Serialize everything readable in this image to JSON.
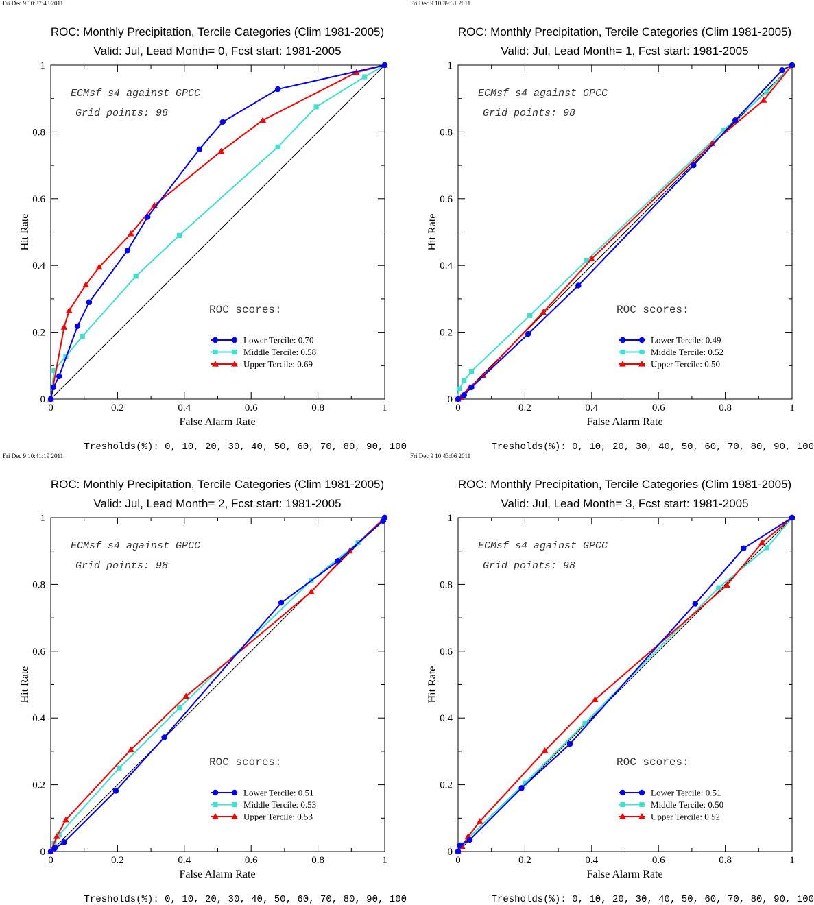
{
  "colors": {
    "lower": "#0000ff",
    "middle": "#40e0d0",
    "upper": "#ff0000",
    "diagonal": "#000000"
  },
  "chart_data": [
    {
      "type": "line",
      "timestamp": "Fri Dec  9 10:37:43 2011",
      "title": "ROC: Monthly Precipitation, Tercile Categories (Clim 1981-2005)",
      "subtitle": "Valid: Jul, Lead Month= 0, Fcst start: 1981-2005",
      "xlabel": "False Alarm Rate",
      "ylabel": "Hit Rate",
      "xlim": [
        0,
        1
      ],
      "ylim": [
        0,
        1
      ],
      "x_ticks": [
        "0",
        "0.2",
        "0.4",
        "0.6",
        "0.8",
        "1"
      ],
      "y_ticks": [
        "0",
        "0.2",
        "0.4",
        "0.6",
        "0.8",
        "1"
      ],
      "annotation_1": "ECMsf s4 against GPCC",
      "annotation_2": "Grid points:   98",
      "legend_title": "ROC scores:",
      "thresholds": "Tresholds(%): 0, 10, 20, 30, 40, 50, 60, 70, 80, 90, 100",
      "series": [
        {
          "name": "Lower Tercile: 0.70",
          "color_key": "lower",
          "marker": "circle",
          "x": [
            0,
            0.008,
            0.025,
            0.08,
            0.115,
            0.23,
            0.29,
            0.445,
            0.515,
            0.68,
            1
          ],
          "y": [
            0,
            0.035,
            0.068,
            0.218,
            0.29,
            0.445,
            0.545,
            0.748,
            0.83,
            0.928,
            1
          ]
        },
        {
          "name": "Middle Tercile: 0.58",
          "color_key": "middle",
          "marker": "square",
          "x": [
            0,
            0.01,
            0.045,
            0.095,
            0.255,
            0.385,
            0.68,
            0.795,
            0.94,
            1
          ],
          "y": [
            0,
            0.085,
            0.128,
            0.188,
            0.368,
            0.49,
            0.755,
            0.875,
            0.965,
            1
          ]
        },
        {
          "name": "Upper Tercile: 0.69",
          "color_key": "upper",
          "marker": "triangle",
          "x": [
            0,
            0.04,
            0.055,
            0.105,
            0.145,
            0.24,
            0.31,
            0.51,
            0.635,
            0.915,
            1
          ],
          "y": [
            0,
            0.215,
            0.265,
            0.342,
            0.395,
            0.495,
            0.58,
            0.742,
            0.835,
            0.978,
            1
          ]
        }
      ]
    },
    {
      "type": "line",
      "timestamp": "Fri Dec  9 10:39:31 2011",
      "title": "ROC: Monthly Precipitation, Tercile Categories (Clim 1981-2005)",
      "subtitle": "Valid: Jul, Lead Month= 1, Fcst start: 1981-2005",
      "xlabel": "False Alarm Rate",
      "ylabel": "Hit Rate",
      "xlim": [
        0,
        1
      ],
      "ylim": [
        0,
        1
      ],
      "x_ticks": [
        "0",
        "0.2",
        "0.4",
        "0.6",
        "0.8",
        "1"
      ],
      "y_ticks": [
        "0",
        "0.2",
        "0.4",
        "0.6",
        "0.8",
        "1"
      ],
      "annotation_1": "ECMsf s4 against GPCC",
      "annotation_2": "Grid points:   98",
      "legend_title": "ROC scores:",
      "thresholds": "Tresholds(%): 0, 10, 20, 30, 40, 50, 60, 70, 80, 90, 100",
      "series": [
        {
          "name": "Lower Tercile: 0.49",
          "color_key": "lower",
          "marker": "circle",
          "x": [
            0,
            0.018,
            0.04,
            0.21,
            0.36,
            0.705,
            0.83,
            0.97,
            1
          ],
          "y": [
            0,
            0.012,
            0.035,
            0.195,
            0.34,
            0.7,
            0.835,
            0.985,
            1
          ]
        },
        {
          "name": "Middle Tercile: 0.52",
          "color_key": "middle",
          "marker": "square",
          "x": [
            0,
            0.003,
            0.018,
            0.04,
            0.215,
            0.385,
            0.795,
            0.925,
            1
          ],
          "y": [
            0,
            0.03,
            0.055,
            0.083,
            0.25,
            0.415,
            0.805,
            0.92,
            1
          ]
        },
        {
          "name": "Upper Tercile: 0.50",
          "color_key": "upper",
          "marker": "triangle",
          "x": [
            0,
            0.008,
            0.035,
            0.075,
            0.255,
            0.4,
            0.76,
            0.915,
            1
          ],
          "y": [
            0,
            0.005,
            0.035,
            0.07,
            0.26,
            0.42,
            0.765,
            0.895,
            1
          ]
        }
      ]
    },
    {
      "type": "line",
      "timestamp": "Fri Dec  9 10:41:19 2011",
      "title": "ROC: Monthly Precipitation, Tercile Categories (Clim 1981-2005)",
      "subtitle": "Valid: Jul, Lead Month= 2, Fcst start: 1981-2005",
      "xlabel": "False Alarm Rate",
      "ylabel": "Hit Rate",
      "xlim": [
        0,
        1
      ],
      "ylim": [
        0,
        1
      ],
      "x_ticks": [
        "0",
        "0.2",
        "0.4",
        "0.6",
        "0.8",
        "1"
      ],
      "y_ticks": [
        "0",
        "0.2",
        "0.4",
        "0.6",
        "0.8",
        "1"
      ],
      "annotation_1": "ECMsf s4 against GPCC",
      "annotation_2": "Grid points:   98",
      "legend_title": "ROC scores:",
      "thresholds": "Tresholds(%): 0, 10, 20, 30, 40, 50, 60, 70, 80, 90, 100",
      "series": [
        {
          "name": "Lower Tercile: 0.51",
          "color_key": "lower",
          "marker": "circle",
          "x": [
            0,
            0.012,
            0.04,
            0.195,
            0.34,
            0.69,
            0.86,
            0.995,
            1
          ],
          "y": [
            0,
            0.01,
            0.028,
            0.182,
            0.342,
            0.745,
            0.87,
            0.99,
            1
          ]
        },
        {
          "name": "Middle Tercile: 0.53",
          "color_key": "middle",
          "marker": "square",
          "x": [
            0,
            0.01,
            0.025,
            0.205,
            0.385,
            0.78,
            0.92,
            1
          ],
          "y": [
            0,
            0.025,
            0.05,
            0.25,
            0.43,
            0.812,
            0.925,
            1
          ]
        },
        {
          "name": "Upper Tercile: 0.53",
          "color_key": "upper",
          "marker": "triangle",
          "x": [
            0,
            0.018,
            0.045,
            0.24,
            0.405,
            0.78,
            0.895,
            0.995,
            1
          ],
          "y": [
            0,
            0.045,
            0.095,
            0.305,
            0.465,
            0.778,
            0.9,
            0.995,
            1
          ]
        }
      ]
    },
    {
      "type": "line",
      "timestamp": "Fri Dec  9 10:43:06 2011",
      "title": "ROC: Monthly Precipitation, Tercile Categories (Clim 1981-2005)",
      "subtitle": "Valid: Jul, Lead Month= 3, Fcst start: 1981-2005",
      "xlabel": "False Alarm Rate",
      "ylabel": "Hit Rate",
      "xlim": [
        0,
        1
      ],
      "ylim": [
        0,
        1
      ],
      "x_ticks": [
        "0",
        "0.2",
        "0.4",
        "0.6",
        "0.8",
        "1"
      ],
      "y_ticks": [
        "0",
        "0.2",
        "0.4",
        "0.6",
        "0.8",
        "1"
      ],
      "annotation_1": "ECMsf s4 against GPCC",
      "annotation_2": "Grid points:   98",
      "legend_title": "ROC scores:",
      "thresholds": "Tresholds(%): 0, 10, 20, 30, 40, 50, 60, 70, 80, 90, 100",
      "series": [
        {
          "name": "Lower Tercile: 0.51",
          "color_key": "lower",
          "marker": "circle",
          "x": [
            0,
            0.005,
            0.035,
            0.19,
            0.335,
            0.71,
            0.855,
            1
          ],
          "y": [
            0,
            0.018,
            0.035,
            0.19,
            0.322,
            0.742,
            0.908,
            1
          ]
        },
        {
          "name": "Middle Tercile: 0.50",
          "color_key": "middle",
          "marker": "square",
          "x": [
            0,
            0.01,
            0.2,
            0.38,
            0.78,
            0.925,
            1
          ],
          "y": [
            0,
            0.02,
            0.205,
            0.385,
            0.79,
            0.91,
            1
          ]
        },
        {
          "name": "Upper Tercile: 0.52",
          "color_key": "upper",
          "marker": "triangle",
          "x": [
            0,
            0.012,
            0.03,
            0.065,
            0.26,
            0.41,
            0.805,
            0.91,
            1
          ],
          "y": [
            0,
            0.015,
            0.045,
            0.09,
            0.302,
            0.455,
            0.798,
            0.925,
            1
          ]
        }
      ]
    }
  ]
}
